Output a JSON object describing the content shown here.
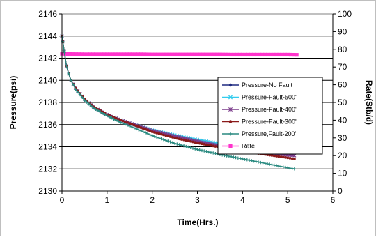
{
  "chart_data": {
    "type": "line",
    "title": "",
    "xlabel": "Time(Hrs.)",
    "ylabel": "Pressure(psi)",
    "y2label": "Rate(Stb/d)",
    "xlim": [
      0,
      6
    ],
    "ylim": [
      2130,
      2146
    ],
    "y2lim": [
      0,
      100
    ],
    "x_ticks": [
      "0",
      "1",
      "2",
      "3",
      "4",
      "5",
      "6"
    ],
    "y_ticks": [
      "2130",
      "2132",
      "2134",
      "2136",
      "2138",
      "2140",
      "2142",
      "2144",
      "2146"
    ],
    "y2_ticks": [
      "0",
      "10",
      "20",
      "30",
      "40",
      "50",
      "60",
      "70",
      "80",
      "90",
      "100"
    ],
    "grid": true,
    "legend_position": "right",
    "series": [
      {
        "name": "Pressure-No Fault",
        "axis": "left",
        "color": "#1f2a80",
        "marker": "diamond",
        "x": [
          0,
          0.02,
          0.05,
          0.1,
          0.15,
          0.2,
          0.3,
          0.4,
          0.5,
          0.7,
          1.0,
          1.3,
          1.6,
          2.0,
          2.5,
          3.0,
          3.5,
          4.0,
          4.5,
          5.0,
          5.15
        ],
        "y": [
          2144,
          2143.5,
          2142.6,
          2141.3,
          2140.6,
          2140.0,
          2139.3,
          2138.8,
          2138.3,
          2137.6,
          2136.9,
          2136.4,
          2136.0,
          2135.5,
          2135.0,
          2134.6,
          2134.25,
          2133.95,
          2133.7,
          2133.45,
          2133.4
        ]
      },
      {
        "name": "Pressure-Fault-500'",
        "axis": "left",
        "color": "#33ccee",
        "marker": "x",
        "x": [
          0,
          0.02,
          0.05,
          0.1,
          0.15,
          0.2,
          0.3,
          0.4,
          0.5,
          0.7,
          1.0,
          1.3,
          1.6,
          2.0,
          2.5,
          3.0,
          3.5,
          4.0,
          4.5,
          5.0,
          5.15
        ],
        "y": [
          2144,
          2143.5,
          2142.6,
          2141.3,
          2140.6,
          2140.0,
          2139.3,
          2138.8,
          2138.3,
          2137.6,
          2136.9,
          2136.4,
          2136.0,
          2135.5,
          2135.05,
          2134.65,
          2134.3,
          2134.0,
          2133.75,
          2133.5,
          2133.45
        ]
      },
      {
        "name": "Pressure-Fault-400'",
        "axis": "left",
        "color": "#7a3a8a",
        "marker": "star",
        "x": [
          0,
          0.02,
          0.05,
          0.1,
          0.15,
          0.2,
          0.3,
          0.4,
          0.5,
          0.7,
          1.0,
          1.3,
          1.6,
          2.0,
          2.5,
          3.0,
          3.5,
          4.0,
          4.5,
          5.0,
          5.15
        ],
        "y": [
          2144,
          2143.5,
          2142.6,
          2141.3,
          2140.6,
          2140.0,
          2139.3,
          2138.8,
          2138.3,
          2137.6,
          2136.9,
          2136.4,
          2136.0,
          2135.45,
          2134.95,
          2134.5,
          2134.1,
          2133.8,
          2133.5,
          2133.25,
          2133.2
        ]
      },
      {
        "name": "Pressure-Fault-300'",
        "axis": "left",
        "color": "#8b1a1a",
        "marker": "circle",
        "x": [
          0,
          0.02,
          0.05,
          0.1,
          0.15,
          0.2,
          0.3,
          0.4,
          0.5,
          0.7,
          1.0,
          1.3,
          1.6,
          2.0,
          2.5,
          3.0,
          3.5,
          4.0,
          4.5,
          5.0,
          5.15
        ],
        "y": [
          2144,
          2143.5,
          2142.6,
          2141.3,
          2140.6,
          2140.0,
          2139.3,
          2138.8,
          2138.3,
          2137.6,
          2136.9,
          2136.4,
          2135.95,
          2135.35,
          2134.8,
          2134.35,
          2133.95,
          2133.6,
          2133.3,
          2133.0,
          2132.9
        ]
      },
      {
        "name": "Pressure,Fault-200'",
        "axis": "left",
        "color": "#2a8a80",
        "marker": "plus",
        "x": [
          0,
          0.02,
          0.05,
          0.1,
          0.15,
          0.2,
          0.3,
          0.4,
          0.5,
          0.7,
          1.0,
          1.3,
          1.6,
          2.0,
          2.5,
          3.0,
          3.5,
          4.0,
          4.5,
          5.0,
          5.15
        ],
        "y": [
          2144,
          2143.5,
          2142.6,
          2141.3,
          2140.6,
          2140.0,
          2139.2,
          2138.7,
          2138.2,
          2137.5,
          2136.8,
          2136.2,
          2135.7,
          2135.0,
          2134.3,
          2133.75,
          2133.3,
          2132.9,
          2132.5,
          2132.1,
          2132.0
        ]
      },
      {
        "name": "Rate",
        "axis": "right",
        "color": "#ff33cc",
        "marker": "square",
        "x": [
          0,
          0.25,
          0.5,
          0.75,
          1.0,
          1.25,
          1.5,
          1.75,
          2.0,
          2.25,
          2.5,
          2.75,
          3.0,
          3.25,
          3.5,
          3.75,
          4.0,
          4.25,
          4.5,
          4.75,
          5.0,
          5.2
        ],
        "y": [
          77.5,
          77.3,
          77.2,
          77.2,
          77.2,
          77.2,
          77.2,
          77.2,
          77.1,
          77.1,
          77.1,
          77.1,
          77.1,
          77.1,
          77.1,
          77.0,
          77.0,
          77.0,
          77.0,
          77.0,
          77.0,
          76.9
        ]
      }
    ]
  }
}
